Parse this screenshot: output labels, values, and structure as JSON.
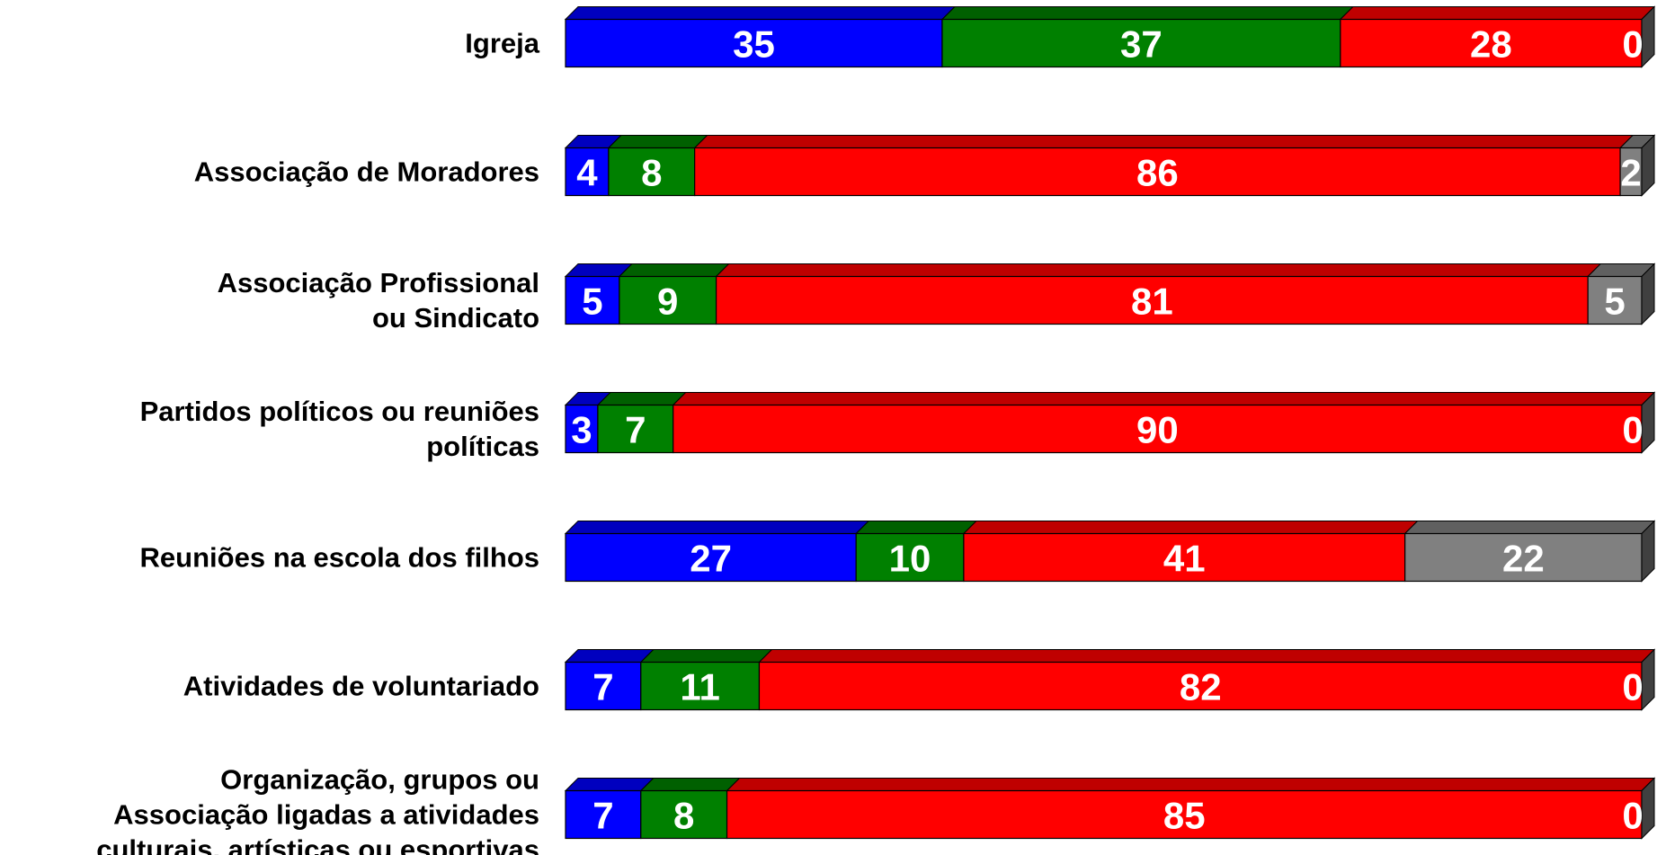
{
  "chart_data": {
    "type": "bar",
    "orientation": "horizontal",
    "stacked": true,
    "three_d": true,
    "categories": [
      "Igreja",
      "Associação de Moradores",
      "Associação Profissional\nou Sindicato",
      "Partidos políticos ou reuniões\npolíticas",
      "Reuniões na escola dos filhos",
      "Atividades de voluntariado",
      "Organização, grupos ou\nAssociação ligadas a atividades\nculturais, artísticas ou esportivas"
    ],
    "series": [
      {
        "color": "#0000ff",
        "values": [
          35,
          4,
          5,
          3,
          27,
          7,
          7
        ]
      },
      {
        "color": "#008000",
        "values": [
          37,
          8,
          9,
          7,
          10,
          11,
          8
        ]
      },
      {
        "color": "#ff0000",
        "values": [
          28,
          86,
          81,
          90,
          41,
          82,
          85
        ]
      },
      {
        "color": "#808080",
        "values": [
          0,
          2,
          5,
          0,
          22,
          0,
          0
        ]
      }
    ],
    "xlim": [
      0,
      100
    ]
  }
}
